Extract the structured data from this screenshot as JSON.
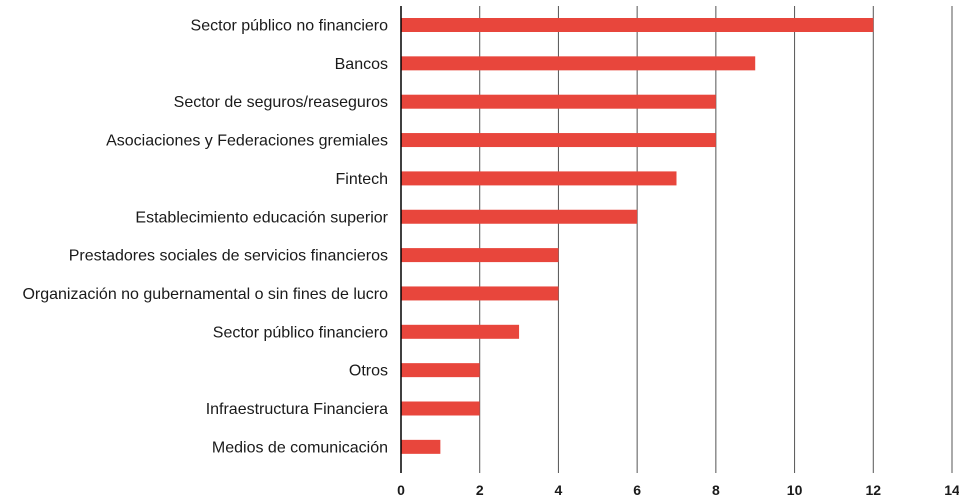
{
  "chart_data": {
    "type": "bar",
    "orientation": "horizontal",
    "categories": [
      "Sector público no financiero",
      "Bancos",
      "Sector de seguros/reaseguros",
      "Asociaciones y Federaciones gremiales",
      "Fintech",
      "Establecimiento educación superior",
      "Prestadores sociales de servicios financieros",
      "Organización no gubernamental o sin fines de lucro",
      "Sector público financiero",
      "Otros",
      "Infraestructura Financiera",
      "Medios de comunicación"
    ],
    "values": [
      12,
      9,
      8,
      8,
      7,
      6,
      4,
      4,
      3,
      2,
      2,
      1
    ],
    "xlim": [
      0,
      14
    ],
    "xticks": [
      "0",
      "2",
      "4",
      "6",
      "8",
      "10",
      "12",
      "14"
    ],
    "grid": true,
    "bar_color": "#e8463c",
    "title": "",
    "xlabel": "",
    "ylabel": ""
  }
}
